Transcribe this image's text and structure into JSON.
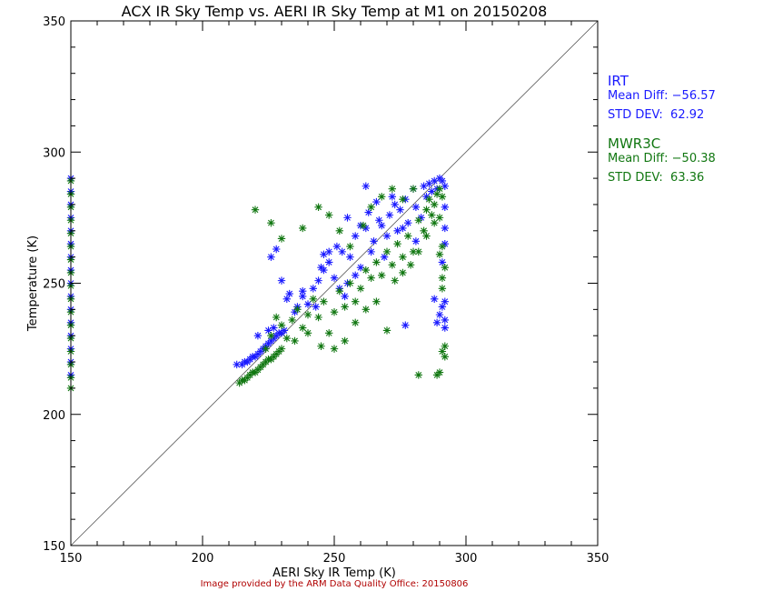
{
  "title": "ACX IR Sky Temp vs. AERI IR Sky Temp at M1 on 20150208",
  "credit": "Image provided by the ARM Data Quality Office: 20150806",
  "legend": {
    "irt": {
      "name": "IRT",
      "mean_label": "Mean Diff:",
      "mean_value": "−56.57",
      "std_label": "STD DEV:",
      "std_value": "62.92",
      "color": "#1a1aff"
    },
    "mwr3c": {
      "name": "MWR3C",
      "mean_label": "Mean Diff:",
      "mean_value": "−50.38",
      "std_label": "STD DEV:",
      "std_value": "63.36",
      "color": "#117711"
    }
  },
  "chart_data": {
    "type": "scatter",
    "title": "ACX IR Sky Temp vs. AERI IR Sky Temp at M1 on 20150208",
    "xlabel": "AERI Sky IR Temp (K)",
    "ylabel": "Temperature (K)",
    "xlim": [
      150,
      350
    ],
    "ylim": [
      150,
      350
    ],
    "xticks": [
      150,
      200,
      250,
      300,
      350
    ],
    "yticks": [
      150,
      200,
      250,
      300,
      350
    ],
    "reference_line": "y = x",
    "grid": false,
    "series": [
      {
        "name": "IRT",
        "color": "#1a1aff",
        "points": [
          [
            150,
            290
          ],
          [
            150,
            285
          ],
          [
            150,
            280
          ],
          [
            150,
            275
          ],
          [
            150,
            270
          ],
          [
            150,
            265
          ],
          [
            150,
            260
          ],
          [
            150,
            255
          ],
          [
            150,
            250
          ],
          [
            150,
            245
          ],
          [
            150,
            240
          ],
          [
            150,
            235
          ],
          [
            150,
            230
          ],
          [
            150,
            225
          ],
          [
            150,
            220
          ],
          [
            150,
            215
          ],
          [
            213,
            219
          ],
          [
            215,
            219
          ],
          [
            216,
            220
          ],
          [
            217,
            220
          ],
          [
            218,
            221
          ],
          [
            219,
            222
          ],
          [
            220,
            222
          ],
          [
            221,
            223
          ],
          [
            222,
            224
          ],
          [
            223,
            225
          ],
          [
            224,
            226
          ],
          [
            225,
            227
          ],
          [
            226,
            228
          ],
          [
            227,
            229
          ],
          [
            228,
            230
          ],
          [
            229,
            231
          ],
          [
            230,
            231
          ],
          [
            231,
            232
          ],
          [
            221,
            230
          ],
          [
            225,
            232
          ],
          [
            227,
            233
          ],
          [
            226,
            260
          ],
          [
            228,
            263
          ],
          [
            230,
            251
          ],
          [
            232,
            244
          ],
          [
            233,
            246
          ],
          [
            235,
            239
          ],
          [
            236,
            241
          ],
          [
            238,
            245
          ],
          [
            240,
            242
          ],
          [
            242,
            248
          ],
          [
            244,
            251
          ],
          [
            245,
            256
          ],
          [
            246,
            261
          ],
          [
            248,
            258
          ],
          [
            250,
            252
          ],
          [
            251,
            264
          ],
          [
            253,
            262
          ],
          [
            255,
            250
          ],
          [
            256,
            260
          ],
          [
            258,
            268
          ],
          [
            260,
            256
          ],
          [
            262,
            271
          ],
          [
            263,
            277
          ],
          [
            265,
            266
          ],
          [
            266,
            281
          ],
          [
            268,
            272
          ],
          [
            269,
            260
          ],
          [
            271,
            276
          ],
          [
            272,
            283
          ],
          [
            274,
            270
          ],
          [
            275,
            278
          ],
          [
            277,
            282
          ],
          [
            278,
            273
          ],
          [
            280,
            286
          ],
          [
            281,
            279
          ],
          [
            283,
            275
          ],
          [
            284,
            287
          ],
          [
            285,
            283
          ],
          [
            286,
            288
          ],
          [
            287,
            285
          ],
          [
            288,
            289
          ],
          [
            289,
            286
          ],
          [
            290,
            290
          ],
          [
            291,
            289
          ],
          [
            292,
            287
          ],
          [
            262,
            287
          ],
          [
            246,
            255
          ],
          [
            252,
            248
          ],
          [
            258,
            253
          ],
          [
            254,
            245
          ],
          [
            264,
            262
          ],
          [
            270,
            268
          ],
          [
            276,
            271
          ],
          [
            281,
            266
          ],
          [
            238,
            247
          ],
          [
            243,
            241
          ],
          [
            248,
            262
          ],
          [
            255,
            275
          ],
          [
            260,
            272
          ],
          [
            267,
            274
          ],
          [
            273,
            280
          ],
          [
            277,
            234
          ],
          [
            288,
            244
          ],
          [
            289,
            235
          ],
          [
            290,
            238
          ],
          [
            291,
            241
          ],
          [
            292,
            243
          ],
          [
            292,
            236
          ],
          [
            292,
            233
          ],
          [
            291,
            258
          ],
          [
            292,
            271
          ],
          [
            292,
            279
          ],
          [
            292,
            265
          ]
        ]
      },
      {
        "name": "MWR3C",
        "color": "#117711",
        "points": [
          [
            150,
            289
          ],
          [
            150,
            284
          ],
          [
            150,
            279
          ],
          [
            150,
            274
          ],
          [
            150,
            269
          ],
          [
            150,
            264
          ],
          [
            150,
            259
          ],
          [
            150,
            254
          ],
          [
            150,
            249
          ],
          [
            150,
            244
          ],
          [
            150,
            239
          ],
          [
            150,
            234
          ],
          [
            150,
            229
          ],
          [
            150,
            224
          ],
          [
            150,
            219
          ],
          [
            150,
            214
          ],
          [
            150,
            210
          ],
          [
            214,
            212
          ],
          [
            215,
            213
          ],
          [
            216,
            213
          ],
          [
            217,
            214
          ],
          [
            218,
            215
          ],
          [
            219,
            216
          ],
          [
            220,
            216
          ],
          [
            221,
            217
          ],
          [
            222,
            218
          ],
          [
            223,
            219
          ],
          [
            224,
            220
          ],
          [
            225,
            221
          ],
          [
            226,
            221
          ],
          [
            227,
            222
          ],
          [
            228,
            223
          ],
          [
            229,
            224
          ],
          [
            230,
            225
          ],
          [
            220,
            278
          ],
          [
            226,
            273
          ],
          [
            230,
            267
          ],
          [
            224,
            225
          ],
          [
            226,
            230
          ],
          [
            228,
            237
          ],
          [
            230,
            234
          ],
          [
            232,
            229
          ],
          [
            234,
            236
          ],
          [
            236,
            240
          ],
          [
            238,
            233
          ],
          [
            240,
            238
          ],
          [
            242,
            244
          ],
          [
            244,
            237
          ],
          [
            246,
            243
          ],
          [
            248,
            231
          ],
          [
            250,
            239
          ],
          [
            252,
            247
          ],
          [
            254,
            241
          ],
          [
            256,
            250
          ],
          [
            258,
            243
          ],
          [
            260,
            248
          ],
          [
            262,
            255
          ],
          [
            264,
            252
          ],
          [
            266,
            258
          ],
          [
            268,
            253
          ],
          [
            270,
            262
          ],
          [
            272,
            257
          ],
          [
            274,
            265
          ],
          [
            276,
            260
          ],
          [
            278,
            268
          ],
          [
            280,
            262
          ],
          [
            282,
            274
          ],
          [
            284,
            270
          ],
          [
            285,
            278
          ],
          [
            286,
            282
          ],
          [
            287,
            276
          ],
          [
            288,
            280
          ],
          [
            289,
            284
          ],
          [
            290,
            286
          ],
          [
            291,
            283
          ],
          [
            238,
            271
          ],
          [
            244,
            279
          ],
          [
            248,
            276
          ],
          [
            252,
            270
          ],
          [
            256,
            264
          ],
          [
            261,
            272
          ],
          [
            264,
            279
          ],
          [
            268,
            283
          ],
          [
            272,
            286
          ],
          [
            276,
            282
          ],
          [
            280,
            286
          ],
          [
            235,
            228
          ],
          [
            240,
            231
          ],
          [
            245,
            226
          ],
          [
            250,
            225
          ],
          [
            254,
            228
          ],
          [
            258,
            235
          ],
          [
            262,
            240
          ],
          [
            266,
            243
          ],
          [
            270,
            232
          ],
          [
            273,
            251
          ],
          [
            276,
            254
          ],
          [
            279,
            257
          ],
          [
            282,
            262
          ],
          [
            285,
            268
          ],
          [
            288,
            273
          ],
          [
            290,
            261
          ],
          [
            282,
            215
          ],
          [
            289,
            215
          ],
          [
            290,
            216
          ],
          [
            291,
            224
          ],
          [
            292,
            226
          ],
          [
            292,
            222
          ],
          [
            291,
            248
          ],
          [
            291,
            252
          ],
          [
            292,
            256
          ],
          [
            291,
            264
          ],
          [
            290,
            275
          ]
        ]
      }
    ]
  }
}
